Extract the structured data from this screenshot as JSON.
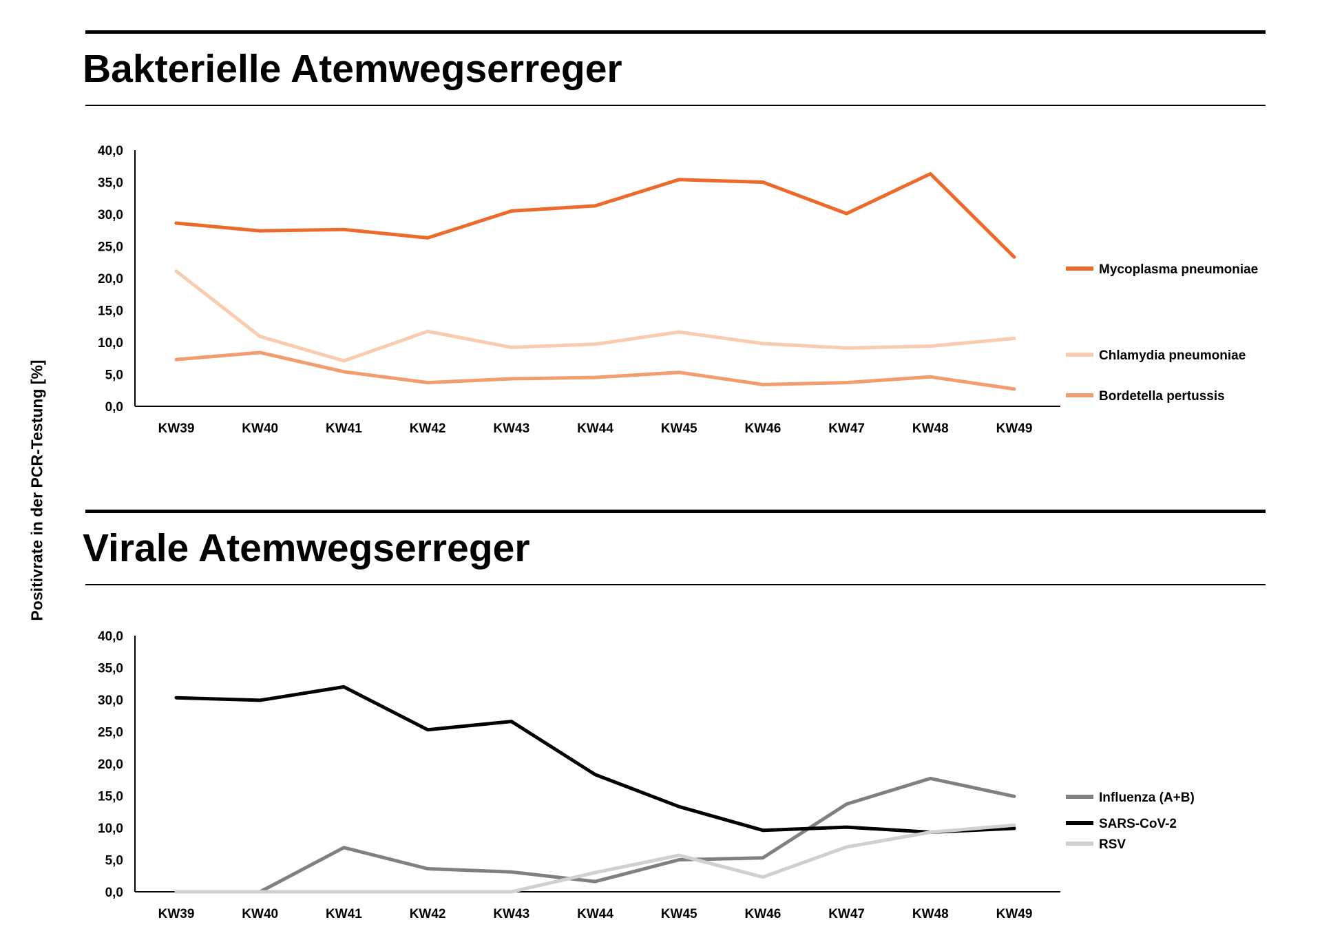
{
  "y_axis_label": "Positivrate in der PCR-Testung [%]",
  "chart_data": [
    {
      "type": "line",
      "title": "Bakterielle Atemwegserreger",
      "categories": [
        "KW39",
        "KW40",
        "KW41",
        "KW42",
        "KW43",
        "KW44",
        "KW45",
        "KW46",
        "KW47",
        "KW48",
        "KW49"
      ],
      "ylim": [
        0,
        40
      ],
      "yticks": [
        "0,0",
        "5,0",
        "10,0",
        "15,0",
        "20,0",
        "25,0",
        "30,0",
        "35,0",
        "40,0"
      ],
      "grid": false,
      "legend": "right",
      "series": [
        {
          "name": "Mycoplasma pneumoniae",
          "color": "#EC6A2A",
          "values": [
            28.6,
            27.4,
            27.6,
            26.3,
            30.5,
            31.3,
            35.4,
            35.0,
            30.1,
            36.3,
            23.3
          ]
        },
        {
          "name": "Chlamydia pneumoniae",
          "color": "#F9CCB0",
          "values": [
            21.1,
            10.9,
            7.1,
            11.7,
            9.2,
            9.7,
            11.6,
            9.8,
            9.1,
            9.4,
            10.6
          ]
        },
        {
          "name": "Bordetella pertussis",
          "color": "#F29C6F",
          "values": [
            7.3,
            8.4,
            5.4,
            3.7,
            4.3,
            4.5,
            5.3,
            3.4,
            3.7,
            4.6,
            2.7
          ]
        }
      ]
    },
    {
      "type": "line",
      "title": "Virale Atemwegserreger",
      "categories": [
        "KW39",
        "KW40",
        "KW41",
        "KW42",
        "KW43",
        "KW44",
        "KW45",
        "KW46",
        "KW47",
        "KW48",
        "KW49"
      ],
      "ylim": [
        0,
        40
      ],
      "yticks": [
        "0,0",
        "5,0",
        "10,0",
        "15,0",
        "20,0",
        "25,0",
        "30,0",
        "35,0",
        "40,0"
      ],
      "grid": false,
      "legend": "right",
      "series": [
        {
          "name": "Influenza (A+B)",
          "color": "#808080",
          "values": [
            0.0,
            0.0,
            6.9,
            3.6,
            3.1,
            1.6,
            5.0,
            5.3,
            13.7,
            17.7,
            14.9
          ]
        },
        {
          "name": "SARS-CoV-2",
          "color": "#000000",
          "values": [
            30.3,
            29.9,
            32.0,
            25.3,
            26.6,
            18.3,
            13.3,
            9.6,
            10.1,
            9.3,
            9.9
          ]
        },
        {
          "name": "RSV",
          "color": "#D0D0D0",
          "values": [
            0.0,
            0.0,
            0.0,
            0.0,
            0.0,
            3.0,
            5.7,
            2.3,
            7.0,
            9.3,
            10.4
          ]
        }
      ]
    }
  ]
}
